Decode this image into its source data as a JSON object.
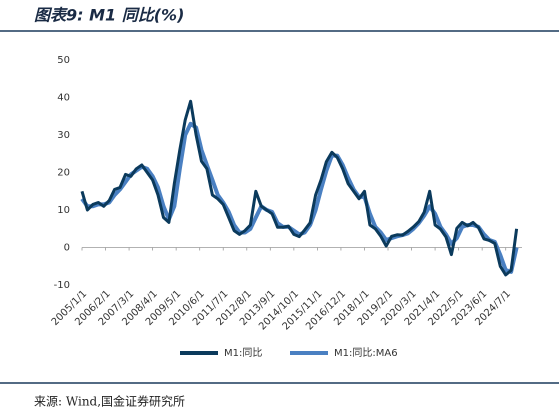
{
  "chart_data": {
    "type": "line",
    "title": "图表9: M1 同比(%)",
    "source": "来源: Wind,国金证券研究所",
    "x": [
      "2005/1/1",
      "2005/4/1",
      "2005/7/1",
      "2005/10/1",
      "2006/1/1",
      "2006/4/1",
      "2006/7/1",
      "2006/10/1",
      "2007/1/1",
      "2007/4/1",
      "2007/7/1",
      "2007/10/1",
      "2008/1/1",
      "2008/4/1",
      "2008/7/1",
      "2008/10/1",
      "2009/1/1",
      "2009/4/1",
      "2009/7/1",
      "2009/10/1",
      "2010/1/1",
      "2010/4/1",
      "2010/7/1",
      "2010/10/1",
      "2011/1/1",
      "2011/4/1",
      "2011/7/1",
      "2011/10/1",
      "2012/1/1",
      "2012/4/1",
      "2012/7/1",
      "2012/10/1",
      "2013/1/1",
      "2013/4/1",
      "2013/7/1",
      "2013/10/1",
      "2014/1/1",
      "2014/4/1",
      "2014/7/1",
      "2014/10/1",
      "2015/1/1",
      "2015/4/1",
      "2015/7/1",
      "2015/10/1",
      "2016/1/1",
      "2016/4/1",
      "2016/7/1",
      "2016/10/1",
      "2017/1/1",
      "2017/4/1",
      "2017/7/1",
      "2017/10/1",
      "2018/1/1",
      "2018/4/1",
      "2018/7/1",
      "2018/10/1",
      "2019/1/1",
      "2019/4/1",
      "2019/7/1",
      "2019/10/1",
      "2020/1/1",
      "2020/4/1",
      "2020/7/1",
      "2020/10/1",
      "2021/1/1",
      "2021/4/1",
      "2021/7/1",
      "2021/10/1",
      "2022/1/1",
      "2022/4/1",
      "2022/7/1",
      "2022/10/1",
      "2023/1/1",
      "2023/4/1",
      "2023/7/1",
      "2023/10/1",
      "2024/1/1",
      "2024/4/1",
      "2024/7/1",
      "2024/10/1",
      "2025/1/1"
    ],
    "series": [
      {
        "name": "M1:同比",
        "color": "#0b3a5c",
        "values": [
          15,
          10,
          11.5,
          12,
          11,
          12.5,
          15.5,
          16,
          19.5,
          19,
          21,
          22,
          20,
          18,
          14,
          8,
          6.7,
          17,
          26,
          34,
          39,
          30,
          23,
          21,
          14,
          13,
          11.5,
          8,
          4.5,
          3.5,
          4.5,
          6,
          15,
          11,
          10,
          9,
          5.4,
          5.4,
          5.7,
          3.5,
          2.9,
          4.7,
          6.6,
          14,
          18,
          22.9,
          25.4,
          24,
          21,
          17,
          15,
          13,
          15,
          6,
          5,
          3,
          0.4,
          3,
          3.4,
          3.3,
          4.3,
          5.5,
          6.9,
          9.4,
          15,
          6,
          4.9,
          2.8,
          -1.9,
          5.1,
          6.7,
          5.8,
          6.7,
          5.3,
          2.3,
          1.9,
          1.1,
          -5,
          -7.3,
          -6.1,
          5
        ]
      },
      {
        "name": "M1:同比:MA6",
        "color": "#4a80c2",
        "values": [
          13,
          11,
          11,
          11.5,
          11.5,
          12,
          14,
          15.5,
          17.5,
          19.5,
          20.5,
          21.5,
          21,
          19,
          16,
          11,
          7.5,
          11,
          21,
          30,
          33,
          32,
          26,
          22,
          18,
          14,
          12,
          9.5,
          6,
          4,
          4,
          5,
          8,
          11,
          10,
          9.5,
          6.5,
          5.5,
          5.5,
          4.5,
          3.5,
          4,
          6,
          10,
          15.5,
          20.5,
          24.5,
          24.5,
          22,
          18.5,
          15.5,
          13.5,
          13.5,
          9,
          5.5,
          4,
          2,
          2.5,
          3,
          3.3,
          3.8,
          5,
          6.5,
          8.5,
          11,
          9,
          5.5,
          3.5,
          1,
          2.5,
          5.5,
          6,
          6,
          5.5,
          3.5,
          2,
          1.5,
          -2,
          -6,
          -6.5,
          0
        ]
      }
    ],
    "xlim": [
      "2005/1/1",
      "2025/4/1"
    ],
    "xticks": [
      "2005/1/1",
      "2006/2/1",
      "2007/3/1",
      "2008/4/1",
      "2009/5/1",
      "2010/6/1",
      "2011/7/1",
      "2012/8/1",
      "2013/9/1",
      "2014/10/1",
      "2015/11/1",
      "2016/12/1",
      "2018/1/1",
      "2019/2/1",
      "2020/3/1",
      "2021/4/1",
      "2022/5/1",
      "2023/6/1",
      "2024/7/1"
    ],
    "ylim": [
      -10,
      50
    ],
    "yticks": [
      -10,
      0,
      10,
      20,
      30,
      40,
      50
    ],
    "grid": false,
    "legend": "bottom"
  }
}
